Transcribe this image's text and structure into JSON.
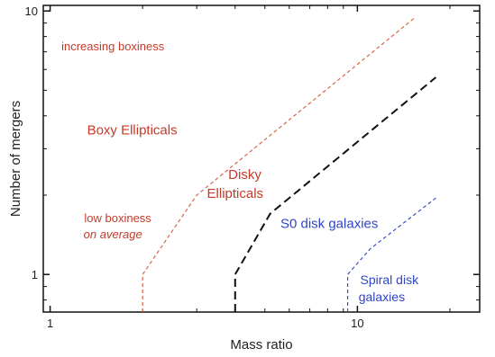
{
  "chart_data": {
    "type": "line",
    "xlabel": "Mass ratio",
    "ylabel": "Number of mergers",
    "xscale": "log",
    "yscale": "log",
    "xlim": [
      0.95,
      25
    ],
    "ylim": [
      0.72,
      10.5
    ],
    "x_ticks": [
      1,
      10
    ],
    "y_ticks": [
      1,
      10
    ],
    "grid": false,
    "series": [
      {
        "key": "boxy_boundary",
        "color": "#d9664a",
        "dash": "short",
        "points": [
          [
            2.0,
            0.72
          ],
          [
            2.0,
            1.0
          ],
          [
            3.0,
            2.0
          ],
          [
            15.5,
            9.5
          ]
        ]
      },
      {
        "key": "disky_boundary",
        "color": "#111111",
        "dash": "long",
        "points": [
          [
            4.0,
            0.72
          ],
          [
            4.0,
            1.0
          ],
          [
            5.2,
            1.7
          ],
          [
            18.0,
            5.6
          ]
        ]
      },
      {
        "key": "s0_boundary",
        "color": "#3a4fd0",
        "dash": "short",
        "points": [
          [
            9.3,
            0.72
          ],
          [
            9.3,
            1.0
          ],
          [
            11.0,
            1.25
          ],
          [
            18.0,
            1.95
          ]
        ]
      }
    ],
    "annotations": [
      {
        "key": "increasing",
        "text": "increasing boxiness",
        "color": "#c63a28",
        "italic": false,
        "at": [
          1.6,
          7.1
        ]
      },
      {
        "key": "boxy",
        "text": "Boxy Ellipticals",
        "color": "#c63a28",
        "italic": false,
        "at": [
          1.85,
          3.4
        ]
      },
      {
        "key": "low",
        "text": "low boxiness",
        "color": "#c63a28",
        "italic": false,
        "at": [
          1.66,
          1.58
        ]
      },
      {
        "key": "on_average",
        "text": "on average",
        "color": "#c63a28",
        "italic": true,
        "at": [
          1.6,
          1.37
        ]
      },
      {
        "key": "disky1",
        "text": "Disky",
        "color": "#c63a28",
        "italic": false,
        "at": [
          4.3,
          2.3
        ]
      },
      {
        "key": "disky2",
        "text": "Ellipticals",
        "color": "#c63a28",
        "italic": false,
        "at": [
          4.0,
          1.95
        ]
      },
      {
        "key": "s0",
        "text": "S0 disk galaxies",
        "color": "#2f45c8",
        "italic": false,
        "at": [
          8.1,
          1.5
        ]
      },
      {
        "key": "spiral1",
        "text": "Spiral disk",
        "color": "#2f45c8",
        "italic": false,
        "at": [
          12.7,
          0.92
        ]
      },
      {
        "key": "spiral2",
        "text": "galaxies",
        "color": "#2f45c8",
        "italic": false,
        "at": [
          12.0,
          0.79
        ]
      }
    ]
  }
}
